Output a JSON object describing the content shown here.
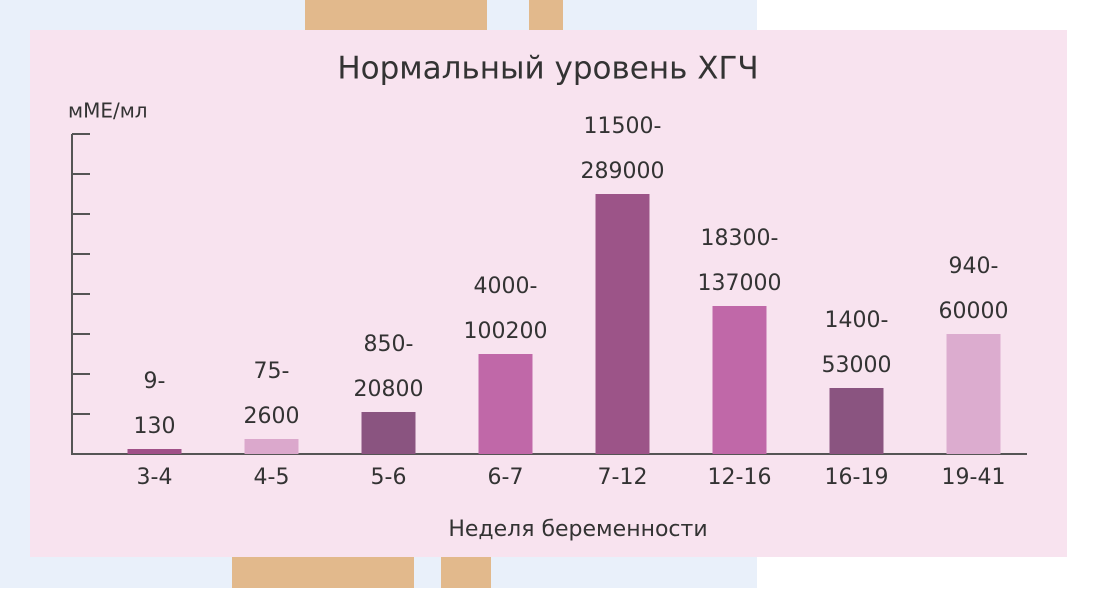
{
  "chart_data": {
    "type": "bar",
    "title": "Нормальный уровень ХГЧ",
    "y_label": "мМЕ/мл",
    "x_label": "Неделя беременности",
    "categories": [
      "3-4",
      "4-5",
      "5-6",
      "6-7",
      "7-12",
      "12-16",
      "16-19",
      "19-41"
    ],
    "values": [
      0.125,
      0.375,
      1.05,
      2.5,
      6.5,
      3.7,
      1.65,
      3.0
    ],
    "range_labels": [
      [
        "9-",
        "130"
      ],
      [
        "75-",
        "2600"
      ],
      [
        "850-",
        "20800"
      ],
      [
        "4000-",
        "100200"
      ],
      [
        "11500-",
        "289000"
      ],
      [
        "18300-",
        "137000"
      ],
      [
        "1400-",
        "53000"
      ],
      [
        "940-",
        "60000"
      ]
    ],
    "colors": [
      "#a05088",
      "#dba8cc",
      "#8a5480",
      "#c068a8",
      "#9c5488",
      "#c068a8",
      "#8a5480",
      "#dcaccf"
    ],
    "ylim": [
      0,
      8
    ],
    "yticks": [
      1,
      2,
      3,
      4,
      5,
      6,
      7,
      8
    ]
  }
}
